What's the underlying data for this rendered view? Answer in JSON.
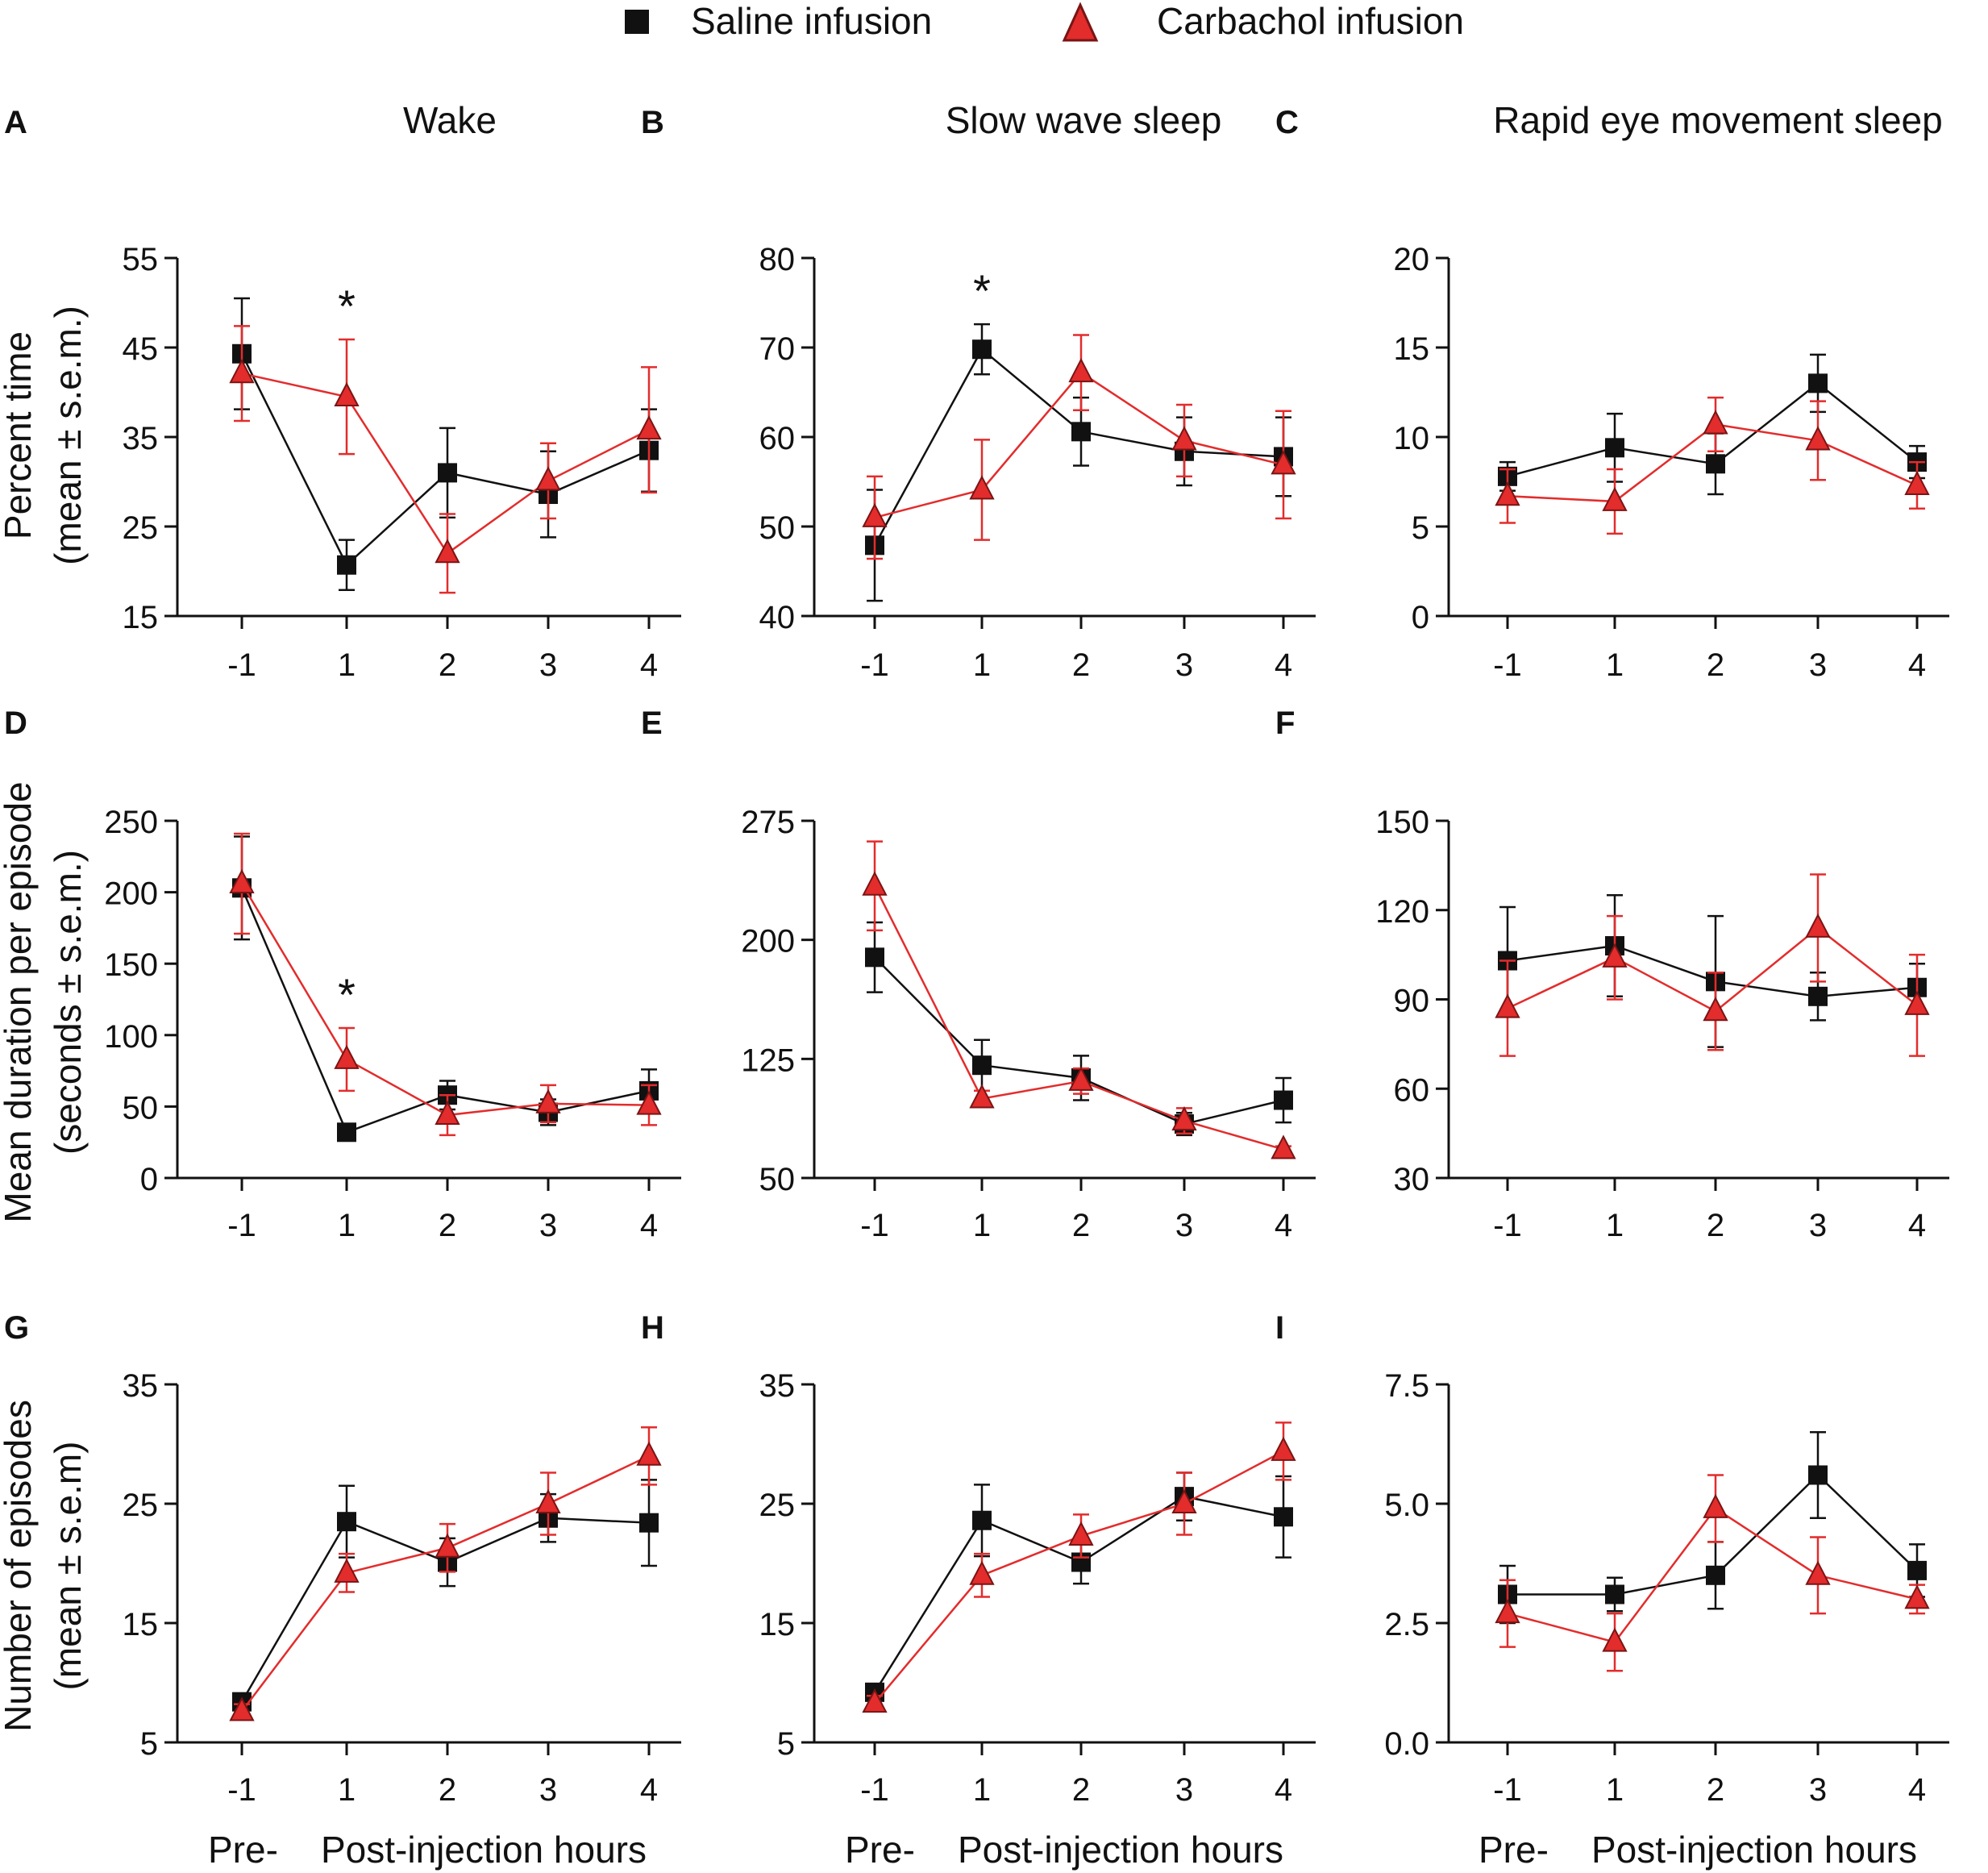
{
  "figure": {
    "legend": [
      {
        "name": "Saline infusion",
        "marker": "square",
        "color": "#111111"
      },
      {
        "name": "Carbachol infusion",
        "marker": "triangle",
        "color": "#E32C2C"
      }
    ],
    "column_titles": [
      "Wake",
      "Slow wave sleep",
      "Rapid eye movement sleep"
    ],
    "row_ylabels": [
      [
        "Percent time",
        "(mean ± s.e.m.)"
      ],
      [
        "Mean duration per episode",
        "(seconds ± s.e.m.)"
      ],
      [
        "Number of episodes",
        "(mean ± s.e.m)"
      ]
    ],
    "x_footer": {
      "pre": "Pre-",
      "post": "Post-injection hours"
    },
    "colors": {
      "saline": "#111111",
      "carbachol": "#E32C2C",
      "carbachol_stroke": "#7a1414"
    }
  },
  "chart_data": [
    {
      "panel": "A",
      "type": "line",
      "title": "Wake",
      "categories": [
        "-1",
        "1",
        "2",
        "3",
        "4"
      ],
      "ylim": [
        15,
        55
      ],
      "yticks": [
        15,
        25,
        35,
        45,
        55
      ],
      "ytick_labels": [
        "15",
        "25",
        "35",
        "45",
        "55"
      ],
      "significant": [
        "1"
      ],
      "significance_mark": "*",
      "series": [
        {
          "name": "Saline infusion",
          "values": [
            44.3,
            20.7,
            31,
            28.6,
            33.5
          ],
          "sem": [
            6.2,
            2.8,
            5,
            4.8,
            4.6
          ]
        },
        {
          "name": "Carbachol infusion",
          "values": [
            42.1,
            39.5,
            22,
            30.1,
            35.8
          ],
          "sem": [
            5.3,
            6.4,
            4.4,
            4.2,
            7
          ]
        }
      ]
    },
    {
      "panel": "B",
      "type": "line",
      "title": "Slow wave sleep",
      "categories": [
        "-1",
        "1",
        "2",
        "3",
        "4"
      ],
      "ylim": [
        40,
        80
      ],
      "yticks": [
        40,
        50,
        60,
        70,
        80
      ],
      "ytick_labels": [
        "40",
        "50",
        "60",
        "70",
        "80"
      ],
      "significant": [
        "1"
      ],
      "significance_mark": "*",
      "series": [
        {
          "name": "Saline infusion",
          "values": [
            47.9,
            69.8,
            60.6,
            58.4,
            57.8
          ],
          "sem": [
            6.2,
            2.8,
            3.8,
            3.8,
            4.4
          ]
        },
        {
          "name": "Carbachol infusion",
          "values": [
            51,
            54.1,
            67.2,
            59.6,
            56.9
          ],
          "sem": [
            4.6,
            5.6,
            4.2,
            4,
            6
          ]
        }
      ]
    },
    {
      "panel": "C",
      "type": "line",
      "title": "Rapid eye movement sleep",
      "categories": [
        "-1",
        "1",
        "2",
        "3",
        "4"
      ],
      "ylim": [
        0,
        20
      ],
      "yticks": [
        0,
        5,
        10,
        15,
        20
      ],
      "ytick_labels": [
        "0",
        "5",
        "10",
        "15",
        "20"
      ],
      "significant": [],
      "significance_mark": "",
      "series": [
        {
          "name": "Saline infusion",
          "values": [
            7.8,
            9.4,
            8.5,
            13,
            8.6
          ],
          "sem": [
            0.8,
            1.9,
            1.7,
            1.6,
            0.9
          ]
        },
        {
          "name": "Carbachol infusion",
          "values": [
            6.7,
            6.4,
            10.7,
            9.8,
            7.3
          ],
          "sem": [
            1.5,
            1.8,
            1.5,
            2.2,
            1.3
          ]
        }
      ]
    },
    {
      "panel": "D",
      "type": "line",
      "title": "",
      "categories": [
        "-1",
        "1",
        "2",
        "3",
        "4"
      ],
      "ylim": [
        0,
        250
      ],
      "yticks": [
        0,
        50,
        100,
        150,
        200,
        250
      ],
      "ytick_labels": [
        "0",
        "50",
        "100",
        "150",
        "200",
        "250"
      ],
      "significant": [
        "1"
      ],
      "significance_mark": "*",
      "series": [
        {
          "name": "Saline infusion",
          "values": [
            203,
            32,
            58,
            46,
            61
          ],
          "sem": [
            36,
            2,
            10,
            9,
            15
          ]
        },
        {
          "name": "Carbachol infusion",
          "values": [
            206,
            83,
            44,
            52,
            51
          ],
          "sem": [
            35,
            22,
            14,
            13,
            14
          ]
        }
      ]
    },
    {
      "panel": "E",
      "type": "line",
      "title": "",
      "categories": [
        "-1",
        "1",
        "2",
        "3",
        "4"
      ],
      "ylim": [
        50,
        275
      ],
      "yticks": [
        50,
        125,
        200,
        275
      ],
      "ytick_labels": [
        "50",
        "125",
        "200",
        "275"
      ],
      "significant": [],
      "significance_mark": "",
      "series": [
        {
          "name": "Saline infusion",
          "values": [
            189,
            121,
            113,
            84,
            99
          ],
          "sem": [
            22,
            16,
            14,
            7,
            14
          ]
        },
        {
          "name": "Carbachol infusion",
          "values": [
            234,
            100,
            111,
            86,
            68
          ],
          "sem": [
            28,
            5,
            8,
            8,
            2
          ]
        }
      ]
    },
    {
      "panel": "F",
      "type": "line",
      "title": "",
      "categories": [
        "-1",
        "1",
        "2",
        "3",
        "4"
      ],
      "ylim": [
        30,
        150
      ],
      "yticks": [
        30,
        60,
        90,
        120,
        150
      ],
      "ytick_labels": [
        "30",
        "60",
        "90",
        "120",
        "150"
      ],
      "significant": [],
      "significance_mark": "",
      "series": [
        {
          "name": "Saline infusion",
          "values": [
            103,
            108,
            96,
            91,
            94
          ],
          "sem": [
            18,
            17,
            22,
            8,
            8
          ]
        },
        {
          "name": "Carbachol infusion",
          "values": [
            87,
            104,
            86,
            114,
            88
          ],
          "sem": [
            16,
            14,
            13,
            18,
            17
          ]
        }
      ]
    },
    {
      "panel": "G",
      "type": "line",
      "title": "",
      "categories": [
        "-1",
        "1",
        "2",
        "3",
        "4"
      ],
      "ylim": [
        5,
        35
      ],
      "yticks": [
        5,
        15,
        25,
        35
      ],
      "ytick_labels": [
        "5",
        "15",
        "25",
        "35"
      ],
      "significant": [],
      "significance_mark": "",
      "series": [
        {
          "name": "Saline infusion",
          "values": [
            8.4,
            23.5,
            20.1,
            23.8,
            23.4
          ],
          "sem": [
            0.6,
            3,
            2,
            2,
            3.6
          ]
        },
        {
          "name": "Carbachol infusion",
          "values": [
            7.6,
            19.2,
            21.3,
            25,
            29
          ],
          "sem": [
            0.6,
            1.6,
            2,
            2.6,
            2.4
          ]
        }
      ]
    },
    {
      "panel": "H",
      "type": "line",
      "title": "",
      "categories": [
        "-1",
        "1",
        "2",
        "3",
        "4"
      ],
      "ylim": [
        5,
        35
      ],
      "yticks": [
        5,
        15,
        25,
        35
      ],
      "ytick_labels": [
        "5",
        "15",
        "25",
        "35"
      ],
      "significant": [],
      "significance_mark": "",
      "series": [
        {
          "name": "Saline infusion",
          "values": [
            9.2,
            23.6,
            20.1,
            25.6,
            23.9
          ],
          "sem": [
            0.6,
            3,
            1.8,
            2,
            3.4
          ]
        },
        {
          "name": "Carbachol infusion",
          "values": [
            8.3,
            19,
            22.3,
            25,
            29.4
          ],
          "sem": [
            0.6,
            1.8,
            1.8,
            2.6,
            2.4
          ]
        }
      ]
    },
    {
      "panel": "I",
      "type": "line",
      "title": "",
      "categories": [
        "-1",
        "1",
        "2",
        "3",
        "4"
      ],
      "ylim": [
        0,
        7.5
      ],
      "yticks": [
        0,
        2.5,
        5,
        7.5
      ],
      "ytick_labels": [
        "0.0",
        "2.5",
        "5.0",
        "7.5"
      ],
      "significant": [],
      "significance_mark": "",
      "series": [
        {
          "name": "Saline infusion",
          "values": [
            3.1,
            3.1,
            3.5,
            5.6,
            3.6
          ],
          "sem": [
            0.6,
            0.35,
            0.7,
            0.9,
            0.55
          ]
        },
        {
          "name": "Carbachol infusion",
          "values": [
            2.7,
            2.1,
            4.9,
            3.5,
            3
          ],
          "sem": [
            0.7,
            0.6,
            0.7,
            0.8,
            0.3
          ]
        }
      ]
    }
  ]
}
